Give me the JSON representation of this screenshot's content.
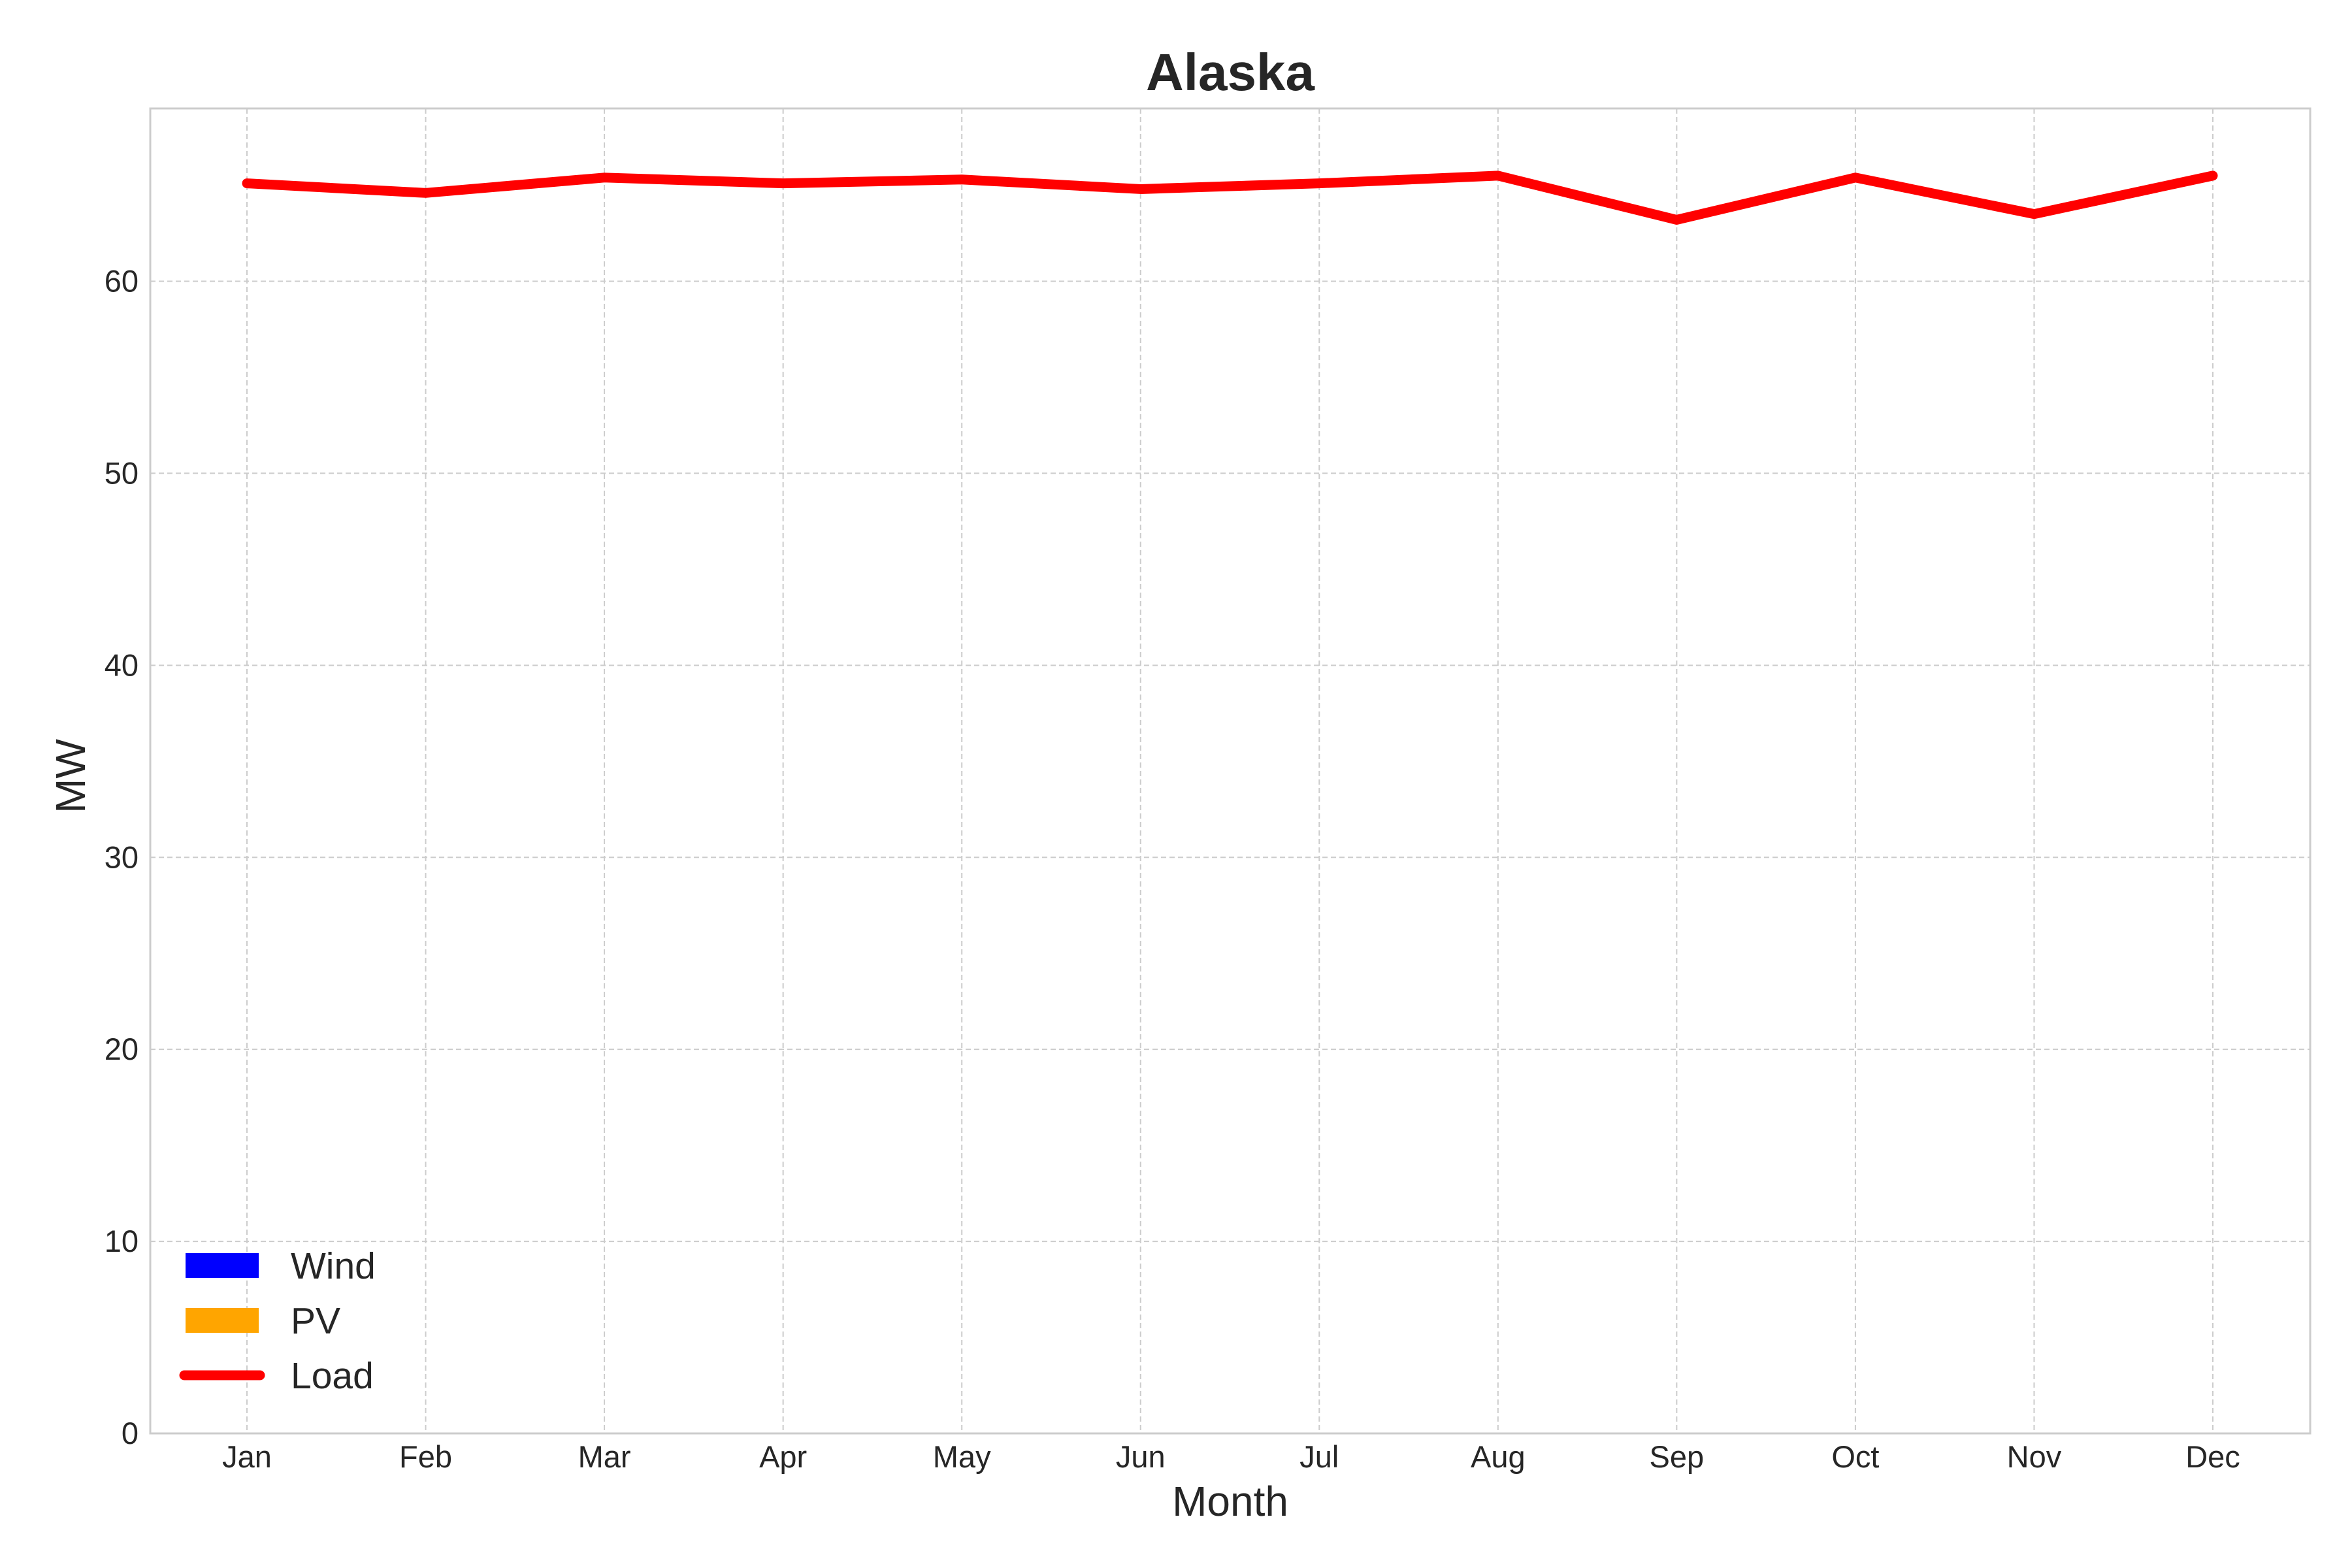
{
  "chart_data": {
    "type": "line",
    "title": "Alaska",
    "xlabel": "Month",
    "ylabel": "MW",
    "categories": [
      "Jan",
      "Feb",
      "Mar",
      "Apr",
      "May",
      "Jun",
      "Jul",
      "Aug",
      "Sep",
      "Oct",
      "Nov",
      "Dec"
    ],
    "ylim": [
      0,
      69
    ],
    "yticks": [
      0,
      10,
      20,
      30,
      40,
      50,
      60
    ],
    "grid": true,
    "legend_position": "bottom-left",
    "series": [
      {
        "name": "Wind",
        "kind": "area",
        "color": "#0000ff",
        "values": [
          0,
          0,
          0,
          0,
          0,
          0,
          0,
          0,
          0,
          0,
          0,
          0
        ]
      },
      {
        "name": "PV",
        "kind": "area",
        "color": "#ffa500",
        "values": [
          0,
          0,
          0,
          0,
          0,
          0,
          0,
          0,
          0,
          0,
          0,
          0
        ]
      },
      {
        "name": "Load",
        "kind": "line",
        "color": "#ff0000",
        "values": [
          65.1,
          64.6,
          65.4,
          65.1,
          65.3,
          64.8,
          65.1,
          65.5,
          63.2,
          65.4,
          63.5,
          65.5
        ]
      }
    ]
  }
}
